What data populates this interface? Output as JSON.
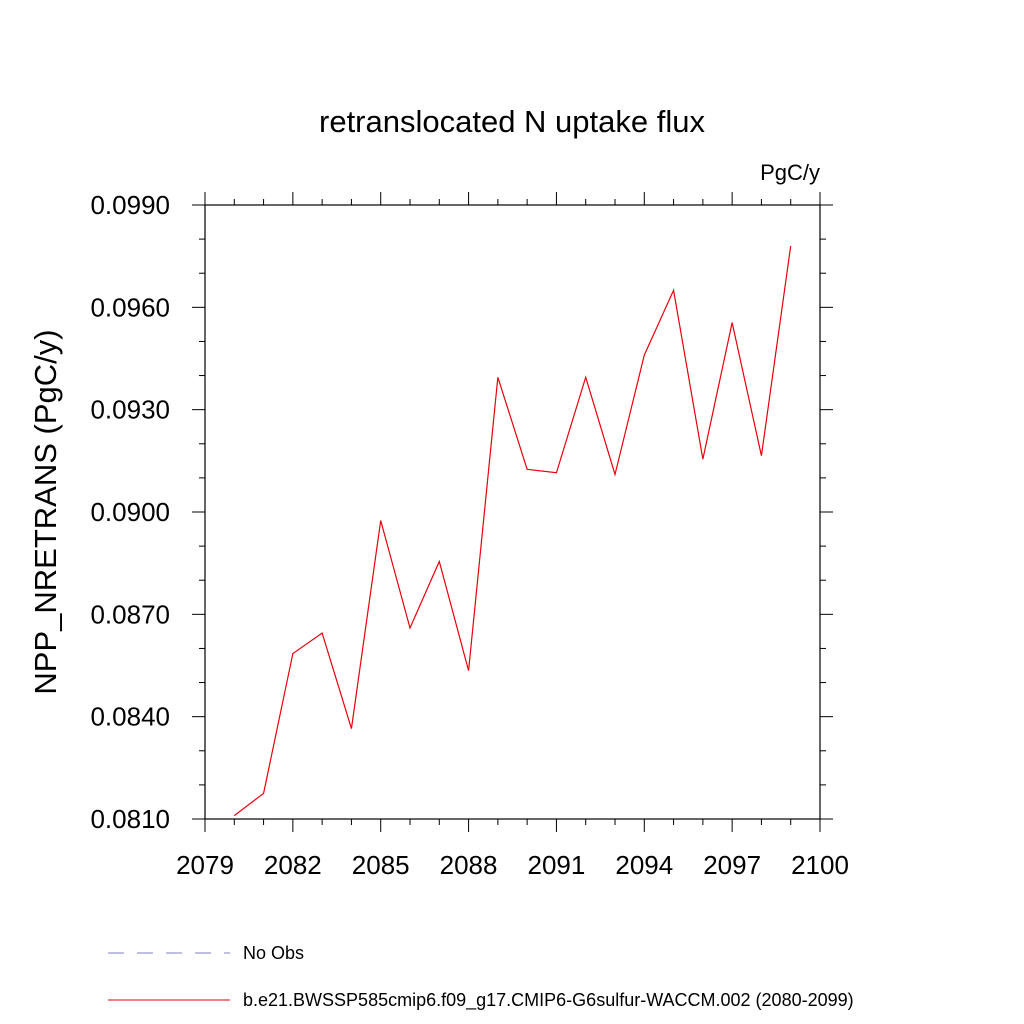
{
  "chart_data": {
    "type": "line",
    "title": "retranslocated N uptake flux",
    "units_label": "PgC/y",
    "ylabel": "NPP_NRETRANS  (PgC/y)",
    "xlabel": "",
    "xlim": [
      2079,
      2100
    ],
    "ylim": [
      0.081,
      0.099
    ],
    "x_ticks": [
      2079,
      2082,
      2085,
      2088,
      2091,
      2094,
      2097,
      2100
    ],
    "x_tick_labels": [
      "2079",
      "2082",
      "2085",
      "2088",
      "2091",
      "2094",
      "2097",
      "2100"
    ],
    "y_ticks": [
      0.081,
      0.084,
      0.087,
      0.09,
      0.093,
      0.096,
      0.099
    ],
    "y_tick_labels": [
      "0.0810",
      "0.0840",
      "0.0870",
      "0.0900",
      "0.0930",
      "0.0960",
      "0.0990"
    ],
    "x": [
      2080,
      2081,
      2082,
      2083,
      2084,
      2085,
      2086,
      2087,
      2088,
      2089,
      2090,
      2091,
      2092,
      2093,
      2094,
      2095,
      2096,
      2097,
      2098,
      2099
    ],
    "series": [
      {
        "name": "b.e21.BWSSP585cmip6.f09_g17.CMIP6-G6sulfur-WACCM.002 (2080-2099)",
        "color": "#e8000b",
        "values": [
          0.0811,
          0.08175,
          0.08585,
          0.08645,
          0.08365,
          0.08975,
          0.0866,
          0.08855,
          0.08535,
          0.09395,
          0.09125,
          0.09115,
          0.09395,
          0.0911,
          0.0946,
          0.0965,
          0.09155,
          0.09555,
          0.09165,
          0.0978
        ]
      }
    ],
    "legend": {
      "placement": "bottom",
      "entries": [
        {
          "label": "No Obs",
          "color": "#7f7fbf",
          "style": "dashed"
        },
        {
          "label": "b.e21.BWSSP585cmip6.f09_g17.CMIP6-G6sulfur-WACCM.002 (2080-2099)",
          "color": "#e8000b",
          "style": "solid"
        }
      ]
    },
    "grid": false
  }
}
